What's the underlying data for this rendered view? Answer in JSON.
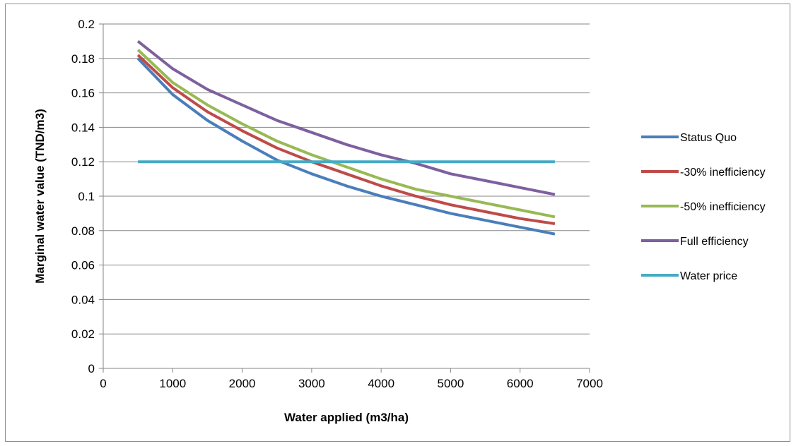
{
  "chart_data": {
    "type": "line",
    "title": "",
    "xlabel": "Water applied (m3/ha)",
    "ylabel": "Marginal water value (TND/m3)",
    "xlim": [
      0,
      7000
    ],
    "ylim": [
      0,
      0.2
    ],
    "x_ticks": [
      "0",
      "1000",
      "2000",
      "3000",
      "4000",
      "5000",
      "6000",
      "7000"
    ],
    "y_ticks": [
      "0",
      "0.02",
      "0.04",
      "0.06",
      "0.08",
      "0.1",
      "0.12",
      "0.14",
      "0.16",
      "0.18",
      "0.2"
    ],
    "grid": "horizontal",
    "legend_position": "right",
    "x": [
      500,
      1000,
      1500,
      2000,
      2500,
      3000,
      3500,
      4000,
      4500,
      5000,
      5500,
      6000,
      6500
    ],
    "series": [
      {
        "name": "Status Quo",
        "color": "#4a7ebb",
        "values": [
          0.18,
          0.159,
          0.144,
          0.132,
          0.121,
          0.113,
          0.106,
          0.1,
          0.095,
          0.09,
          0.086,
          0.082,
          0.078
        ]
      },
      {
        "name": "-30% inefficiency",
        "color": "#be4b48",
        "values": [
          0.182,
          0.163,
          0.149,
          0.138,
          0.128,
          0.12,
          0.113,
          0.106,
          0.1,
          0.095,
          0.091,
          0.087,
          0.084
        ]
      },
      {
        "name": "-50% inefficiency",
        "color": "#98b954",
        "values": [
          0.185,
          0.166,
          0.153,
          0.142,
          0.132,
          0.124,
          0.117,
          0.11,
          0.104,
          0.1,
          0.096,
          0.092,
          0.088
        ]
      },
      {
        "name": "Full efficiency",
        "color": "#7d60a0",
        "values": [
          0.19,
          0.174,
          0.162,
          0.153,
          0.144,
          0.137,
          0.13,
          0.124,
          0.119,
          0.113,
          0.109,
          0.105,
          0.101
        ]
      },
      {
        "name": "Water price",
        "color": "#46aac5",
        "values": [
          0.12,
          0.12,
          0.12,
          0.12,
          0.12,
          0.12,
          0.12,
          0.12,
          0.12,
          0.12,
          0.12,
          0.12,
          0.12
        ]
      }
    ]
  }
}
